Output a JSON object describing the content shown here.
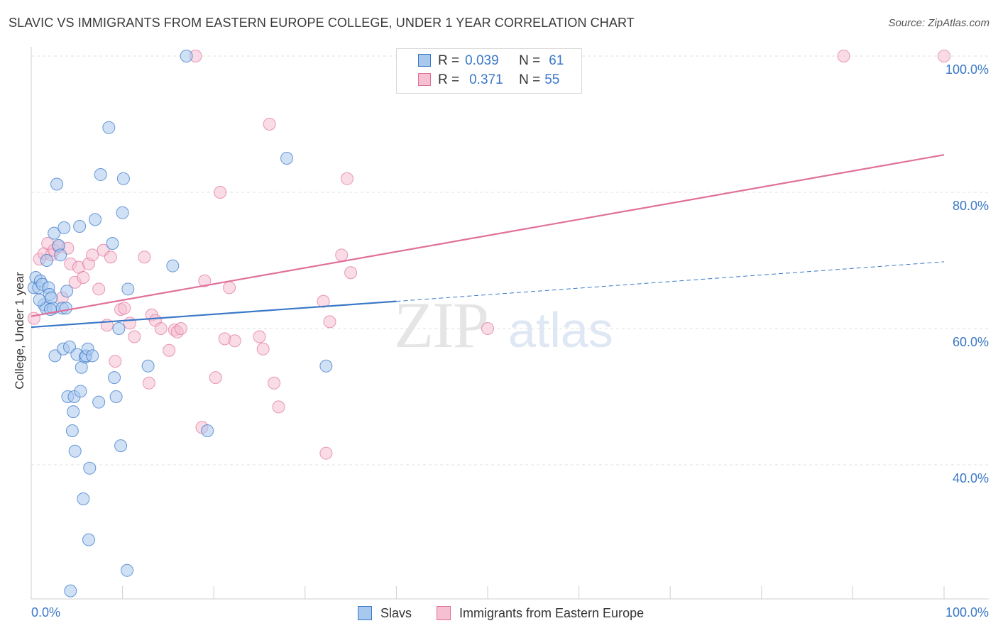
{
  "title": "SLAVIC VS IMMIGRANTS FROM EASTERN EUROPE COLLEGE, UNDER 1 YEAR CORRELATION CHART",
  "source": "Source: ZipAtlas.com",
  "watermark": {
    "zip": "ZIP",
    "atlas": "atlas"
  },
  "legend": {
    "r_label": "R =",
    "n_label": "N =",
    "series1": {
      "r": "0.039",
      "n": "61"
    },
    "series2": {
      "r": "0.371",
      "n": "55"
    }
  },
  "bottom_legend": {
    "series1": "Slavs",
    "series2": "Immigrants from Eastern Europe"
  },
  "colors": {
    "slavs": "#3a78c8",
    "slavs_fill": "#a9c8ee",
    "immigrants": "#e0709a",
    "immigrants_fill": "#f6bfd2",
    "axis_text": "#3a78c8",
    "grid": "#e2e2e2"
  },
  "chart_data": {
    "type": "scatter",
    "title": "SLAVIC VS IMMIGRANTS FROM EASTERN EUROPE COLLEGE, UNDER 1 YEAR CORRELATION CHART",
    "xlabel": "",
    "ylabel": "College, Under 1 year",
    "xlim": [
      0,
      100
    ],
    "ylim": [
      20,
      100
    ],
    "x_tick_labels": [
      "0.0%",
      "100.0%"
    ],
    "y_ticks": [
      40,
      60,
      80,
      100
    ],
    "y_tick_labels": [
      "40.0%",
      "60.0%",
      "80.0%",
      "100.0%"
    ],
    "series": [
      {
        "name": "Slavs",
        "color": "#3a78c8",
        "r": 0.039,
        "n": 61,
        "trend": {
          "x0": 0,
          "y0": 60.2,
          "x1": 40,
          "y1": 64.0,
          "dashed_to_x": 100,
          "dashed_to_y": 69.8
        },
        "points": [
          [
            0.3,
            66
          ],
          [
            0.5,
            67.5
          ],
          [
            0.8,
            66
          ],
          [
            1.0,
            67
          ],
          [
            1.2,
            66.5
          ],
          [
            1.4,
            63.5
          ],
          [
            1.6,
            63
          ],
          [
            1.7,
            70
          ],
          [
            1.9,
            66
          ],
          [
            2.0,
            65
          ],
          [
            2.2,
            64.5
          ],
          [
            2.4,
            63
          ],
          [
            2.5,
            74
          ],
          [
            2.6,
            56
          ],
          [
            2.8,
            81.2
          ],
          [
            3.0,
            72.2
          ],
          [
            3.2,
            70.8
          ],
          [
            3.4,
            63
          ],
          [
            3.5,
            57
          ],
          [
            3.6,
            74.8
          ],
          [
            3.8,
            63
          ],
          [
            3.9,
            65.5
          ],
          [
            4.0,
            50
          ],
          [
            4.2,
            57.3
          ],
          [
            4.5,
            45
          ],
          [
            4.6,
            47.8
          ],
          [
            4.7,
            50
          ],
          [
            4.8,
            42
          ],
          [
            5.0,
            56.2
          ],
          [
            5.3,
            75
          ],
          [
            5.4,
            50.8
          ],
          [
            5.5,
            54.3
          ],
          [
            5.7,
            35
          ],
          [
            5.9,
            55.8
          ],
          [
            6.0,
            56
          ],
          [
            6.2,
            57
          ],
          [
            6.3,
            29
          ],
          [
            6.4,
            39.5
          ],
          [
            6.7,
            56
          ],
          [
            7.0,
            76
          ],
          [
            7.4,
            49.2
          ],
          [
            7.6,
            82.6
          ],
          [
            8.5,
            89.5
          ],
          [
            8.9,
            72.5
          ],
          [
            9.1,
            52.8
          ],
          [
            9.3,
            50
          ],
          [
            9.6,
            60
          ],
          [
            9.8,
            42.8
          ],
          [
            10.0,
            77
          ],
          [
            10.1,
            82
          ],
          [
            10.5,
            24.5
          ],
          [
            10.6,
            65.8
          ],
          [
            12.8,
            54.5
          ],
          [
            15.5,
            69.2
          ],
          [
            17.0,
            100
          ],
          [
            19.3,
            45
          ],
          [
            28.0,
            85
          ],
          [
            32.3,
            54.5
          ],
          [
            4.3,
            21.5
          ],
          [
            2.1,
            62.8
          ],
          [
            0.9,
            64.2
          ]
        ]
      },
      {
        "name": "Immigrants from Eastern Europe",
        "color": "#e0709a",
        "r": 0.371,
        "n": 55,
        "trend": {
          "x0": 0,
          "y0": 61.8,
          "x1": 100,
          "y1": 85.5
        },
        "points": [
          [
            0.3,
            61.5
          ],
          [
            0.9,
            70.2
          ],
          [
            1.4,
            71
          ],
          [
            1.8,
            72.5
          ],
          [
            2.2,
            70.8
          ],
          [
            2.5,
            71.5
          ],
          [
            3.0,
            72
          ],
          [
            3.4,
            64.5
          ],
          [
            4.0,
            71.8
          ],
          [
            4.3,
            69.5
          ],
          [
            4.8,
            66.8
          ],
          [
            5.2,
            69
          ],
          [
            5.7,
            67.5
          ],
          [
            6.3,
            69.5
          ],
          [
            6.7,
            70.8
          ],
          [
            7.4,
            65.8
          ],
          [
            7.9,
            71.5
          ],
          [
            8.3,
            60.5
          ],
          [
            8.7,
            70.5
          ],
          [
            9.2,
            55.2
          ],
          [
            9.8,
            62.8
          ],
          [
            10.2,
            63
          ],
          [
            10.8,
            60.8
          ],
          [
            11.3,
            58.8
          ],
          [
            12.4,
            70.5
          ],
          [
            12.9,
            52
          ],
          [
            13.2,
            62
          ],
          [
            13.6,
            61.2
          ],
          [
            14.2,
            60
          ],
          [
            15.1,
            56.8
          ],
          [
            15.7,
            59.8
          ],
          [
            16.0,
            59.5
          ],
          [
            16.4,
            60
          ],
          [
            18.0,
            100
          ],
          [
            18.7,
            45.5
          ],
          [
            19.0,
            67
          ],
          [
            20.2,
            52.8
          ],
          [
            20.7,
            80
          ],
          [
            21.2,
            58.5
          ],
          [
            21.7,
            66
          ],
          [
            22.3,
            58.2
          ],
          [
            25.0,
            58.8
          ],
          [
            25.4,
            57
          ],
          [
            26.1,
            90
          ],
          [
            26.6,
            52
          ],
          [
            27.1,
            48.5
          ],
          [
            32.0,
            64
          ],
          [
            32.3,
            41.7
          ],
          [
            32.7,
            61
          ],
          [
            34.0,
            70.8
          ],
          [
            34.6,
            82
          ],
          [
            35.0,
            68.2
          ],
          [
            50.0,
            60
          ],
          [
            89.0,
            100
          ],
          [
            100.0,
            100
          ]
        ]
      }
    ]
  }
}
